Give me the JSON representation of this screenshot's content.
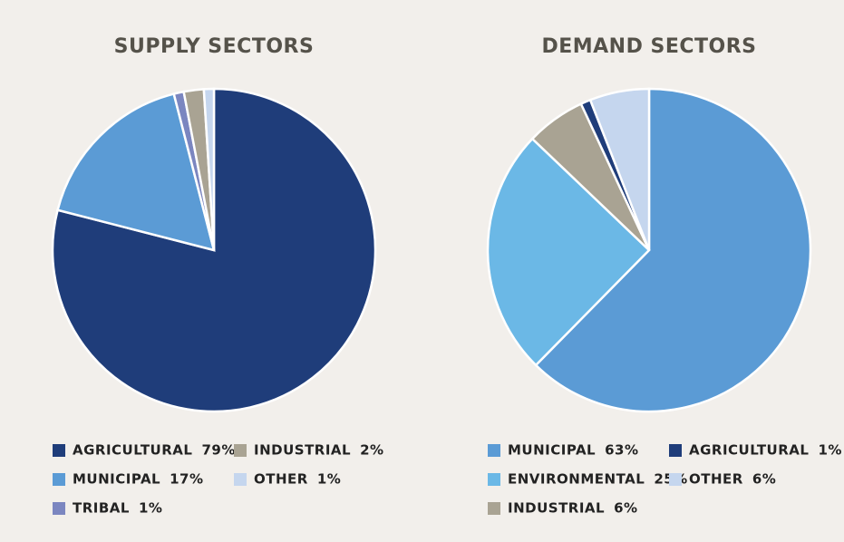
{
  "chart_data": [
    {
      "type": "pie",
      "title": "SUPPLY SECTORS",
      "categories": [
        "AGRICULTURAL",
        "MUNICIPAL",
        "TRIBAL",
        "INDUSTRIAL",
        "OTHER"
      ],
      "values": [
        79,
        17,
        1,
        2,
        1
      ],
      "value_labels": [
        "79%",
        "17%",
        "1%",
        "2%",
        "1%"
      ],
      "colors": [
        "#1f3d7a",
        "#5b9bd5",
        "#7b86c0",
        "#a9a393",
        "#c5d6ee"
      ]
    },
    {
      "type": "pie",
      "title": "DEMAND SECTORS",
      "categories": [
        "MUNICIPAL",
        "ENVIRONMENTAL",
        "INDUSTRIAL",
        "AGRICULTURAL",
        "OTHER"
      ],
      "values": [
        63,
        25,
        6,
        1,
        6
      ],
      "value_labels": [
        "63%",
        "25%",
        "6%",
        "1%",
        "6%"
      ],
      "colors": [
        "#5b9bd5",
        "#6bb8e6",
        "#a9a393",
        "#1f3d7a",
        "#c5d6ee"
      ]
    }
  ]
}
